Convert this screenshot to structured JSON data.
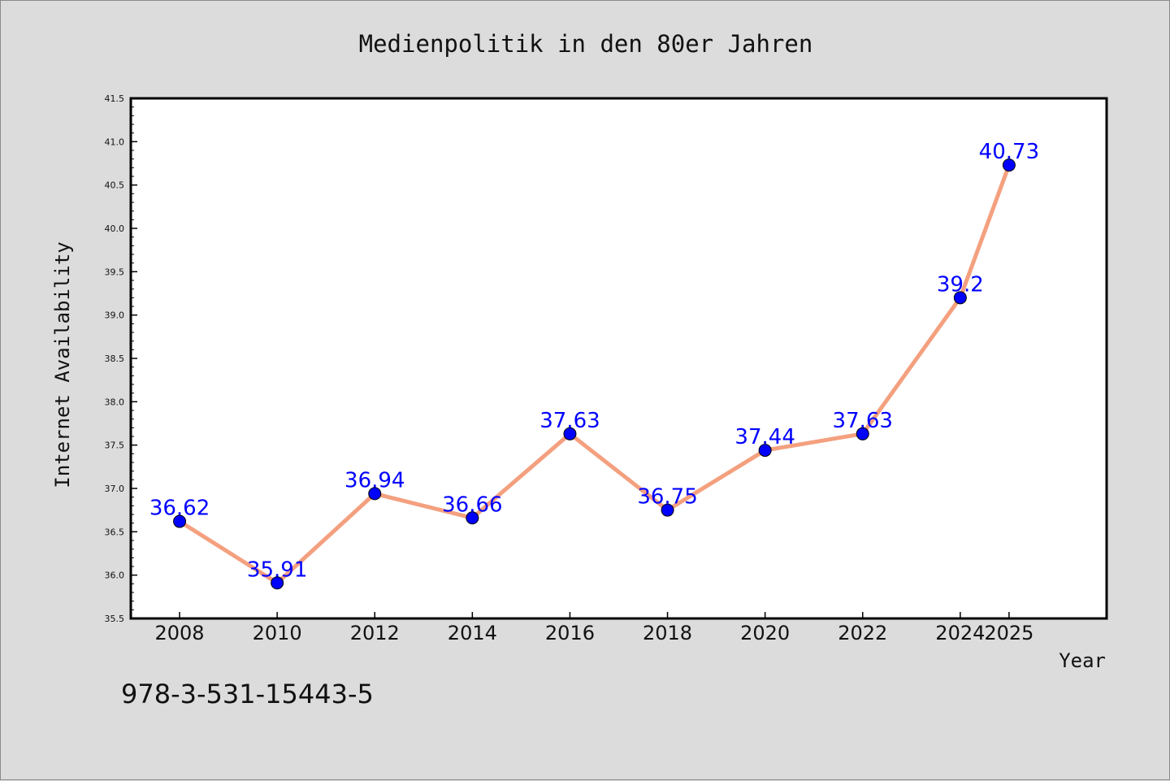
{
  "chart_data": {
    "type": "line",
    "title": "Medienpolitik in den 80er Jahren",
    "xlabel": "Year",
    "ylabel": "Internet Availability",
    "x": [
      "2008",
      "2010",
      "2012",
      "2014",
      "2016",
      "2018",
      "2020",
      "2022",
      "2024",
      "2025"
    ],
    "values": [
      36.62,
      35.91,
      36.94,
      36.66,
      37.63,
      36.75,
      37.44,
      37.63,
      39.2,
      40.73
    ],
    "data_labels": [
      "36.62",
      "35.91",
      "36.94",
      "36.66",
      "37.63",
      "36.75",
      "37.44",
      "37.63",
      "39.2",
      "40.73"
    ],
    "ylim": [
      35.5,
      41.5
    ],
    "yticks": [
      "35.5",
      "36.0",
      "36.5",
      "37.0",
      "37.5",
      "38.0",
      "38.5",
      "39.0",
      "39.5",
      "40.0",
      "40.5",
      "41.0",
      "41.5"
    ],
    "line_color": "#f4a07f",
    "marker_color": "#0000ff",
    "grid": false,
    "legend": "none"
  },
  "footer_text": "978-3-531-15443-5"
}
